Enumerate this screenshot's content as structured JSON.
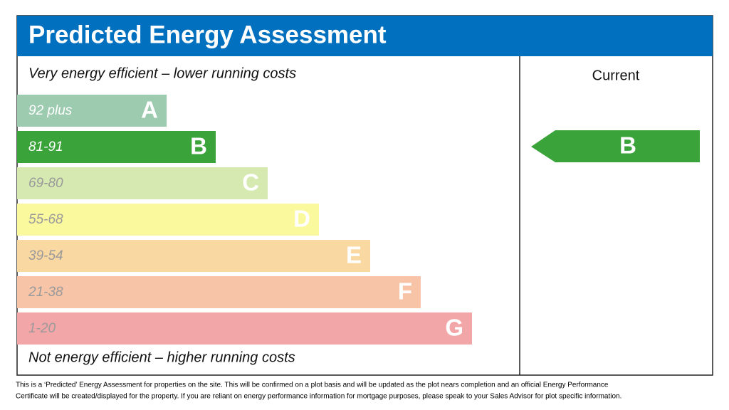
{
  "header": {
    "title": "Predicted Energy Assessment"
  },
  "top_note": "Very energy efficient – lower running costs",
  "bottom_note": "Not energy efficient – higher running costs",
  "bands": [
    {
      "range": "92 plus",
      "letter": "A",
      "color": "#9dcbb0",
      "range_color": "#ffffff"
    },
    {
      "range": "81-91",
      "letter": "B",
      "color": "#3aa33a",
      "range_color": "#ffffff"
    },
    {
      "range": "69-80",
      "letter": "C",
      "color": "#d6e9b1",
      "range_color": "#9a9a9a"
    },
    {
      "range": "55-68",
      "letter": "D",
      "color": "#fbf99d",
      "range_color": "#9a9a9a"
    },
    {
      "range": "39-54",
      "letter": "E",
      "color": "#fad8a1",
      "range_color": "#9a9a9a"
    },
    {
      "range": "21-38",
      "letter": "F",
      "color": "#f7c4a7",
      "range_color": "#9a9a9a"
    },
    {
      "range": "1-20",
      "letter": "G",
      "color": "#f3a6a8",
      "range_color": "#9a9a9a"
    }
  ],
  "current": {
    "label": "Current",
    "rating": "B"
  },
  "footer": {
    "lines": [
      "This is a ‘Predicted’ Energy Assessment for properties on the site. This will be confirmed on a plot basis and will be updated as the plot nears completion and an official Energy Performance",
      "Certificate will be created/displayed for the property. If you are reliant on energy performance information for mortgage purposes, please speak to your Sales Advisor for plot specific information."
    ]
  }
}
